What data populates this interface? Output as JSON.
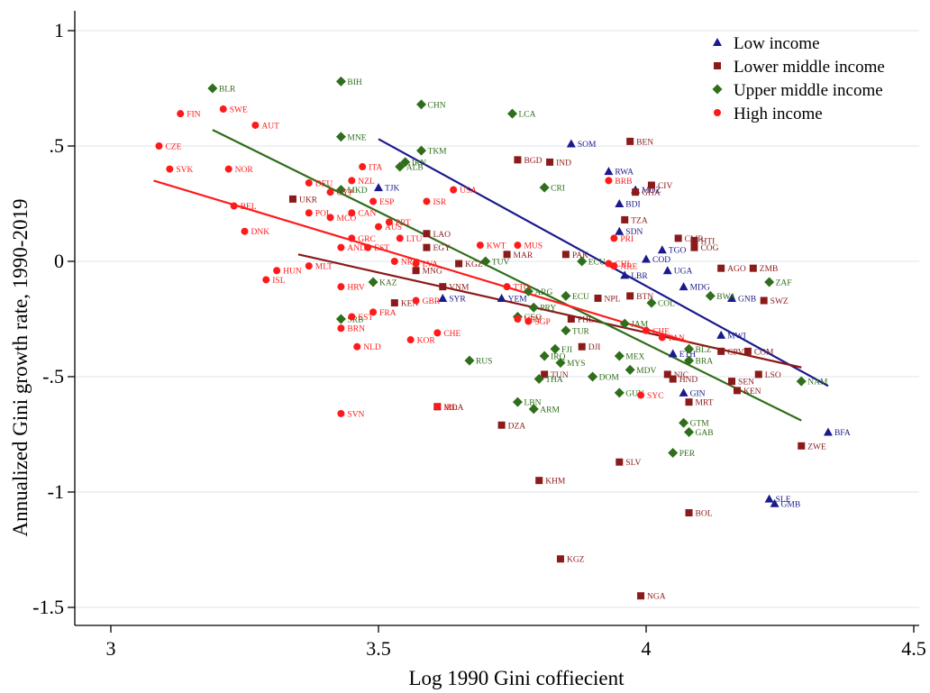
{
  "chart_data": {
    "type": "scatter",
    "title": "",
    "xlabel": "Log 1990 Gini coffiecient",
    "ylabel": "Annualized Gini growth rate, 1990-2019",
    "xlim": [
      2.98,
      4.52
    ],
    "ylim": [
      -1.6,
      1.06
    ],
    "x_ticks": [
      3,
      3.5,
      4,
      4.5
    ],
    "x_tick_labels": [
      "3",
      "3.5",
      "4",
      "4.5"
    ],
    "y_ticks": [
      1,
      0.5,
      0,
      -0.5,
      -1,
      -1.5
    ],
    "y_tick_labels": [
      "1",
      ".5",
      "0",
      "-.5",
      "-1",
      "-1.5"
    ],
    "grid": "horizontal",
    "legend_position": "top-right",
    "series": [
      {
        "name": "Low income",
        "color": "#1a1a8c",
        "marker": "triangle",
        "fit": [
          [
            3.5,
            0.53
          ],
          [
            4.34,
            -0.54
          ]
        ],
        "points": [
          {
            "label": "SOM",
            "x": 3.86,
            "y": 0.51
          },
          {
            "label": "RWA",
            "x": 3.93,
            "y": 0.39
          },
          {
            "label": "GIN",
            "x": 4.07,
            "y": -0.57
          },
          {
            "label": "BFA",
            "x": 4.34,
            "y": -0.74
          },
          {
            "label": "SLE",
            "x": 4.23,
            "y": -1.03
          },
          {
            "label": "GMB",
            "x": 4.24,
            "y": -1.05
          },
          {
            "label": "MWI",
            "x": 4.14,
            "y": -0.32
          },
          {
            "label": "ETH",
            "x": 4.05,
            "y": -0.4
          },
          {
            "label": "MDG",
            "x": 4.07,
            "y": -0.11
          },
          {
            "label": "UGA",
            "x": 4.04,
            "y": -0.04
          },
          {
            "label": "TGO",
            "x": 4.03,
            "y": 0.05
          },
          {
            "label": "SDN",
            "x": 3.95,
            "y": 0.13
          },
          {
            "label": "BDI",
            "x": 3.95,
            "y": 0.25
          },
          {
            "label": "LBR",
            "x": 3.96,
            "y": -0.06
          },
          {
            "label": "COD",
            "x": 4.0,
            "y": 0.01
          },
          {
            "label": "TJK",
            "x": 3.5,
            "y": 0.32
          },
          {
            "label": "SYR",
            "x": 3.62,
            "y": -0.16
          },
          {
            "label": "YEM",
            "x": 3.73,
            "y": -0.16
          },
          {
            "label": "GNB",
            "x": 4.16,
            "y": -0.16
          },
          {
            "label": "MOZ",
            "x": 3.98,
            "y": 0.31
          }
        ]
      },
      {
        "name": "Lower middle income",
        "color": "#8b1a1a",
        "marker": "square",
        "fit": [
          [
            3.35,
            0.03
          ],
          [
            4.29,
            -0.46
          ]
        ],
        "points": [
          {
            "label": "BEN",
            "x": 3.97,
            "y": 0.52
          },
          {
            "label": "BGD",
            "x": 3.76,
            "y": 0.44
          },
          {
            "label": "IND",
            "x": 3.82,
            "y": 0.43
          },
          {
            "label": "CIV",
            "x": 4.01,
            "y": 0.33
          },
          {
            "label": "GHA",
            "x": 3.98,
            "y": 0.3
          },
          {
            "label": "TZA",
            "x": 3.96,
            "y": 0.18
          },
          {
            "label": "LAO",
            "x": 3.59,
            "y": 0.12
          },
          {
            "label": "CMR",
            "x": 4.06,
            "y": 0.1
          },
          {
            "label": "COG",
            "x": 4.09,
            "y": 0.06
          },
          {
            "label": "UKR",
            "x": 3.34,
            "y": 0.27
          },
          {
            "label": "EGY",
            "x": 3.59,
            "y": 0.06
          },
          {
            "label": "MAR",
            "x": 3.74,
            "y": 0.03
          },
          {
            "label": "PAK",
            "x": 3.85,
            "y": 0.03
          },
          {
            "label": "AGO",
            "x": 4.14,
            "y": -0.03
          },
          {
            "label": "ZMB",
            "x": 4.2,
            "y": -0.03
          },
          {
            "label": "MNG",
            "x": 3.57,
            "y": -0.04
          },
          {
            "label": "KGZ",
            "x": 3.65,
            "y": -0.01
          },
          {
            "label": "VNM",
            "x": 3.62,
            "y": -0.11
          },
          {
            "label": "KEN",
            "x": 3.53,
            "y": -0.18
          },
          {
            "label": "NPL",
            "x": 3.91,
            "y": -0.16
          },
          {
            "label": "BTN",
            "x": 3.97,
            "y": -0.15
          },
          {
            "label": "SWZ",
            "x": 4.22,
            "y": -0.17
          },
          {
            "label": "PHL",
            "x": 3.86,
            "y": -0.25
          },
          {
            "label": "HTI",
            "x": 4.09,
            "y": 0.09
          },
          {
            "label": "DJI",
            "x": 3.88,
            "y": -0.37
          },
          {
            "label": "TUN",
            "x": 3.81,
            "y": -0.49
          },
          {
            "label": "NIC",
            "x": 4.04,
            "y": -0.49
          },
          {
            "label": "HND",
            "x": 4.05,
            "y": -0.51
          },
          {
            "label": "SEN",
            "x": 4.16,
            "y": -0.52
          },
          {
            "label": "LSO",
            "x": 4.21,
            "y": -0.49
          },
          {
            "label": "KEN",
            "x": 4.17,
            "y": -0.56
          },
          {
            "label": "MRT",
            "x": 4.08,
            "y": -0.61
          },
          {
            "label": "COM",
            "x": 4.19,
            "y": -0.39
          },
          {
            "label": "CPV",
            "x": 4.14,
            "y": -0.39
          },
          {
            "label": "DZA",
            "x": 3.73,
            "y": -0.71
          },
          {
            "label": "ZWE",
            "x": 4.29,
            "y": -0.8
          },
          {
            "label": "SLV",
            "x": 3.95,
            "y": -0.87
          },
          {
            "label": "KHM",
            "x": 3.8,
            "y": -0.95
          },
          {
            "label": "BOL",
            "x": 4.08,
            "y": -1.09
          },
          {
            "label": "KGZ",
            "x": 3.84,
            "y": -1.29
          },
          {
            "label": "NGA",
            "x": 3.99,
            "y": -1.45
          },
          {
            "label": "MDA",
            "x": 3.61,
            "y": -0.63
          }
        ]
      },
      {
        "name": "Upper middle income",
        "color": "#2f6e1a",
        "marker": "diamond",
        "fit": [
          [
            3.19,
            0.57
          ],
          [
            4.29,
            -0.69
          ]
        ],
        "points": [
          {
            "label": "BLR",
            "x": 3.19,
            "y": 0.75
          },
          {
            "label": "BIH",
            "x": 3.43,
            "y": 0.78
          },
          {
            "label": "CHN",
            "x": 3.58,
            "y": 0.68
          },
          {
            "label": "LCA",
            "x": 3.75,
            "y": 0.64
          },
          {
            "label": "MNE",
            "x": 3.43,
            "y": 0.54
          },
          {
            "label": "TKM",
            "x": 3.58,
            "y": 0.48
          },
          {
            "label": "IRN",
            "x": 3.55,
            "y": 0.43
          },
          {
            "label": "ALB",
            "x": 3.54,
            "y": 0.41
          },
          {
            "label": "CRI",
            "x": 3.81,
            "y": 0.32
          },
          {
            "label": "MKD",
            "x": 3.43,
            "y": 0.31
          },
          {
            "label": "TUV",
            "x": 3.7,
            "y": 0.0
          },
          {
            "label": "ECU",
            "x": 3.88,
            "y": 0.0
          },
          {
            "label": "ZAF",
            "x": 4.23,
            "y": -0.09
          },
          {
            "label": "BWA",
            "x": 4.12,
            "y": -0.15
          },
          {
            "label": "COL",
            "x": 4.01,
            "y": -0.18
          },
          {
            "label": "KAZ",
            "x": 3.49,
            "y": -0.09
          },
          {
            "label": "SRB",
            "x": 3.43,
            "y": -0.25
          },
          {
            "label": "ECU",
            "x": 3.85,
            "y": -0.15
          },
          {
            "label": "PRY",
            "x": 3.79,
            "y": -0.2
          },
          {
            "label": "BRA",
            "x": 4.08,
            "y": -0.43
          },
          {
            "label": "BLZ",
            "x": 4.08,
            "y": -0.38
          },
          {
            "label": "TUR",
            "x": 3.85,
            "y": -0.3
          },
          {
            "label": "JAM",
            "x": 3.96,
            "y": -0.27
          },
          {
            "label": "MEX",
            "x": 3.95,
            "y": -0.41
          },
          {
            "label": "MDV",
            "x": 3.97,
            "y": -0.47
          },
          {
            "label": "PER",
            "x": 4.05,
            "y": -0.83
          },
          {
            "label": "GTM",
            "x": 4.07,
            "y": -0.7
          },
          {
            "label": "GAB",
            "x": 4.08,
            "y": -0.74
          },
          {
            "label": "FJI",
            "x": 3.83,
            "y": -0.38
          },
          {
            "label": "IRQ",
            "x": 3.81,
            "y": -0.41
          },
          {
            "label": "MYS",
            "x": 3.84,
            "y": -0.44
          },
          {
            "label": "DOM",
            "x": 3.9,
            "y": -0.5
          },
          {
            "label": "THA",
            "x": 3.8,
            "y": -0.51
          },
          {
            "label": "GUY",
            "x": 3.95,
            "y": -0.57
          },
          {
            "label": "LBN",
            "x": 3.76,
            "y": -0.61
          },
          {
            "label": "ARM",
            "x": 3.79,
            "y": -0.64
          },
          {
            "label": "RUS",
            "x": 3.67,
            "y": -0.43
          },
          {
            "label": "GEO",
            "x": 3.76,
            "y": -0.24
          },
          {
            "label": "NAM",
            "x": 4.29,
            "y": -0.52
          },
          {
            "label": "ARG",
            "x": 3.78,
            "y": -0.13
          }
        ]
      },
      {
        "name": "High income",
        "color": "#ff1a1a",
        "marker": "circle",
        "fit": [
          [
            3.08,
            0.35
          ],
          [
            4.08,
            -0.35
          ]
        ],
        "points": [
          {
            "label": "FIN",
            "x": 3.13,
            "y": 0.64
          },
          {
            "label": "SWE",
            "x": 3.21,
            "y": 0.66
          },
          {
            "label": "AUT",
            "x": 3.27,
            "y": 0.59
          },
          {
            "label": "CZE",
            "x": 3.09,
            "y": 0.5
          },
          {
            "label": "SVK",
            "x": 3.11,
            "y": 0.4
          },
          {
            "label": "NOR",
            "x": 3.22,
            "y": 0.4
          },
          {
            "label": "ITA",
            "x": 3.47,
            "y": 0.41
          },
          {
            "label": "NZL",
            "x": 3.45,
            "y": 0.35
          },
          {
            "label": "DEU",
            "x": 3.37,
            "y": 0.34
          },
          {
            "label": "USA",
            "x": 3.64,
            "y": 0.31
          },
          {
            "label": "CYP",
            "x": 3.41,
            "y": 0.3
          },
          {
            "label": "ESP",
            "x": 3.49,
            "y": 0.26
          },
          {
            "label": "ISR",
            "x": 3.59,
            "y": 0.26
          },
          {
            "label": "BEL",
            "x": 3.23,
            "y": 0.24
          },
          {
            "label": "POL",
            "x": 3.37,
            "y": 0.21
          },
          {
            "label": "CAN",
            "x": 3.45,
            "y": 0.21
          },
          {
            "label": "MCO",
            "x": 3.41,
            "y": 0.19
          },
          {
            "label": "PRT",
            "x": 3.52,
            "y": 0.17
          },
          {
            "label": "AUS",
            "x": 3.5,
            "y": 0.15
          },
          {
            "label": "DNK",
            "x": 3.25,
            "y": 0.13
          },
          {
            "label": "LTU",
            "x": 3.54,
            "y": 0.1
          },
          {
            "label": "GRC",
            "x": 3.45,
            "y": 0.1
          },
          {
            "label": "AND",
            "x": 3.43,
            "y": 0.06
          },
          {
            "label": "EST",
            "x": 3.48,
            "y": 0.06
          },
          {
            "label": "KWT",
            "x": 3.69,
            "y": 0.07
          },
          {
            "label": "MUS",
            "x": 3.76,
            "y": 0.07
          },
          {
            "label": "PRI",
            "x": 3.94,
            "y": 0.1
          },
          {
            "label": "BRB",
            "x": 3.93,
            "y": 0.35
          },
          {
            "label": "HUN",
            "x": 3.31,
            "y": -0.04
          },
          {
            "label": "ISL",
            "x": 3.29,
            "y": -0.08
          },
          {
            "label": "MLT",
            "x": 3.37,
            "y": -0.02
          },
          {
            "label": "HRV",
            "x": 3.43,
            "y": -0.11
          },
          {
            "label": "NRU",
            "x": 3.53,
            "y": 0.0
          },
          {
            "label": "LVA",
            "x": 3.57,
            "y": -0.01
          },
          {
            "label": "CHL",
            "x": 3.93,
            "y": -0.01
          },
          {
            "label": "ARE",
            "x": 3.94,
            "y": -0.02
          },
          {
            "label": "FRA",
            "x": 3.49,
            "y": -0.22
          },
          {
            "label": "EST",
            "x": 3.45,
            "y": -0.24
          },
          {
            "label": "GBR",
            "x": 3.57,
            "y": -0.17
          },
          {
            "label": "KOR",
            "x": 3.56,
            "y": -0.34
          },
          {
            "label": "BRN",
            "x": 3.43,
            "y": -0.29
          },
          {
            "label": "NLD",
            "x": 3.46,
            "y": -0.37
          },
          {
            "label": "CHE",
            "x": 3.61,
            "y": -0.31
          },
          {
            "label": "CHE",
            "x": 4.0,
            "y": -0.3
          },
          {
            "label": "PAN",
            "x": 4.03,
            "y": -0.33
          },
          {
            "label": "SGP",
            "x": 3.78,
            "y": -0.26
          },
          {
            "label": "URY",
            "x": 3.76,
            "y": -0.25
          },
          {
            "label": "TTO",
            "x": 3.74,
            "y": -0.11
          },
          {
            "label": "SYC",
            "x": 3.99,
            "y": -0.58
          },
          {
            "label": "IRL",
            "x": 3.61,
            "y": -0.63
          },
          {
            "label": "SVN",
            "x": 3.43,
            "y": -0.66
          }
        ]
      }
    ]
  }
}
